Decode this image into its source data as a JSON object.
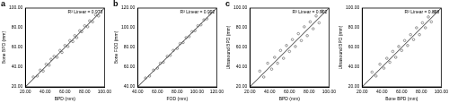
{
  "chart_data": [
    {
      "type": "scatter",
      "panel": "a",
      "annotation": "R² Linear = 0.973",
      "x_label": "BPD (mm)",
      "y_label": "Bone BPD (mm)",
      "xlim": [
        20,
        100
      ],
      "ylim": [
        20,
        100
      ],
      "xticks": [
        {
          "value": 20,
          "label": "20.00"
        },
        {
          "value": 40,
          "label": "40.00"
        },
        {
          "value": 60,
          "label": "60.00"
        },
        {
          "value": 80,
          "label": "80.00"
        },
        {
          "value": 100,
          "label": "100.00"
        }
      ],
      "yticks": [
        {
          "value": 20,
          "label": "20.00"
        },
        {
          "value": 40,
          "label": "40.00"
        },
        {
          "value": 60,
          "label": "60.00"
        },
        {
          "value": 80,
          "label": "80.00"
        },
        {
          "value": 100,
          "label": "100.00"
        }
      ],
      "grid": false,
      "color": "#555555",
      "marker": "circle",
      "identity_line": {
        "x": [
          20,
          100
        ],
        "y": [
          20,
          100
        ]
      },
      "x": [
        28,
        32,
        35,
        38,
        41,
        44,
        46,
        49,
        52,
        55,
        57,
        60,
        63,
        65,
        68,
        70,
        72,
        75,
        77,
        80,
        83,
        85,
        88,
        91,
        94
      ],
      "values": [
        30,
        31,
        37,
        36,
        43,
        42,
        48,
        51,
        50,
        57,
        55,
        62,
        61,
        67,
        66,
        72,
        70,
        77,
        76,
        82,
        81,
        87,
        86,
        93,
        92
      ]
    },
    {
      "type": "scatter",
      "panel": "b",
      "annotation": "R² Linear = 0.992",
      "x_label": "FOD (mm)",
      "y_label": "Bone FOD (mm)",
      "xlim": [
        40,
        120
      ],
      "ylim": [
        40,
        120
      ],
      "xticks": [
        {
          "value": 40,
          "label": "40.00"
        },
        {
          "value": 60,
          "label": "60.00"
        },
        {
          "value": 80,
          "label": "80.00"
        },
        {
          "value": 100,
          "label": "100.00"
        },
        {
          "value": 120,
          "label": "120.00"
        }
      ],
      "yticks": [
        {
          "value": 40,
          "label": "40.00"
        },
        {
          "value": 60,
          "label": "60.00"
        },
        {
          "value": 80,
          "label": "80.00"
        },
        {
          "value": 100,
          "label": "100.00"
        },
        {
          "value": 120,
          "label": "120.00"
        }
      ],
      "grid": false,
      "color": "#555555",
      "marker": "circle",
      "identity_line": {
        "x": [
          40,
          120
        ],
        "y": [
          40,
          120
        ]
      },
      "x": [
        48,
        52,
        56,
        60,
        63,
        66,
        70,
        73,
        76,
        80,
        83,
        86,
        89,
        92,
        95,
        98,
        101,
        104,
        107,
        110,
        113
      ],
      "values": [
        49,
        51,
        57,
        59,
        64,
        65,
        71,
        72,
        77,
        79,
        84,
        85,
        90,
        91,
        96,
        97,
        102,
        103,
        108,
        109,
        114
      ]
    },
    {
      "type": "scatter",
      "panel": "c",
      "annotation": "R² Linear = 0.902",
      "x_label": "BPD (mm)",
      "y_label": "Ultrasound BPD (mm)",
      "xlim": [
        20,
        100
      ],
      "ylim": [
        20,
        100
      ],
      "xticks": [
        {
          "value": 20,
          "label": "20.00"
        },
        {
          "value": 40,
          "label": "40.00"
        },
        {
          "value": 60,
          "label": "60.00"
        },
        {
          "value": 80,
          "label": "80.00"
        },
        {
          "value": 100,
          "label": "100.00"
        }
      ],
      "yticks": [
        {
          "value": 20,
          "label": "20.00"
        },
        {
          "value": 40,
          "label": "40.00"
        },
        {
          "value": 60,
          "label": "60.00"
        },
        {
          "value": 80,
          "label": "80.00"
        },
        {
          "value": 100,
          "label": "100.00"
        }
      ],
      "grid": false,
      "color": "#555555",
      "marker": "circle",
      "identity_line": {
        "x": [
          20,
          100
        ],
        "y": [
          20,
          100
        ]
      },
      "x": [
        30,
        34,
        38,
        42,
        45,
        48,
        51,
        54,
        57,
        60,
        63,
        66,
        69,
        72,
        75,
        78,
        81,
        84,
        87,
        90,
        93
      ],
      "values": [
        36,
        30,
        44,
        38,
        50,
        44,
        57,
        49,
        62,
        56,
        68,
        61,
        74,
        67,
        81,
        72,
        86,
        79,
        92,
        85,
        97
      ]
    },
    {
      "type": "scatter",
      "annotation": "R² Linear = 0.898",
      "x_label": "Bone BPD (mm)",
      "y_label": "Ultrasound BPD (mm)",
      "xlim": [
        20,
        100
      ],
      "ylim": [
        20,
        100
      ],
      "xticks": [
        {
          "value": 20,
          "label": "20.00"
        },
        {
          "value": 40,
          "label": "40.00"
        },
        {
          "value": 60,
          "label": "60.00"
        },
        {
          "value": 80,
          "label": "80.00"
        },
        {
          "value": 100,
          "label": "100.00"
        }
      ],
      "yticks": [
        {
          "value": 20,
          "label": "20.00"
        },
        {
          "value": 40,
          "label": "40.00"
        },
        {
          "value": 60,
          "label": "60.00"
        },
        {
          "value": 80,
          "label": "80.00"
        },
        {
          "value": 100,
          "label": "100.00"
        }
      ],
      "grid": false,
      "color": "#555555",
      "marker": "circle",
      "identity_line": {
        "x": [
          20,
          100
        ],
        "y": [
          20,
          100
        ]
      },
      "x": [
        30,
        34,
        38,
        42,
        45,
        48,
        51,
        54,
        57,
        60,
        63,
        66,
        69,
        72,
        75,
        78,
        81,
        84,
        87,
        90,
        93
      ],
      "values": [
        35,
        31,
        43,
        39,
        49,
        45,
        56,
        50,
        61,
        57,
        67,
        62,
        73,
        68,
        80,
        73,
        85,
        80,
        91,
        86,
        96
      ]
    }
  ]
}
